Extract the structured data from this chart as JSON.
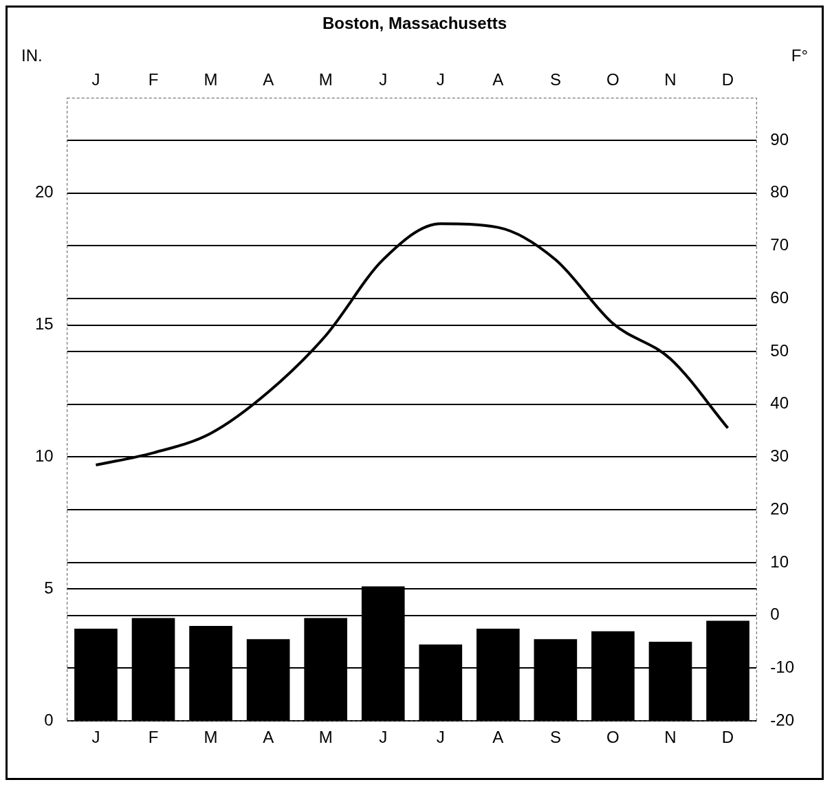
{
  "chart_data": {
    "type": "bar",
    "title": "Boston, Massachusetts",
    "ylabel": "IN.",
    "y2label": "F°",
    "categories": [
      "J",
      "F",
      "M",
      "A",
      "M",
      "J",
      "J",
      "A",
      "S",
      "O",
      "N",
      "D"
    ],
    "series": [
      {
        "type": "bar",
        "color": "#000000",
        "values": [
          3.5,
          3.9,
          3.6,
          3.1,
          3.9,
          5.1,
          2.9,
          3.5,
          3.1,
          3.4,
          3.0,
          3.8
        ]
      },
      {
        "type": "line",
        "axis": "y2",
        "color": "#000000",
        "values": [
          28.5,
          30.8,
          34.5,
          42.3,
          53,
          67.4,
          74.2,
          73.5,
          67.4,
          55.3,
          48.6,
          35.5
        ]
      }
    ],
    "ylim": [
      0,
      23.6
    ],
    "yticks": [
      0,
      5,
      10,
      15,
      20
    ],
    "y2lim": [
      -20,
      98
    ],
    "y2ticks": [
      -20,
      -10,
      0,
      10,
      20,
      30,
      40,
      50,
      60,
      70,
      80,
      90
    ],
    "grid": true
  }
}
